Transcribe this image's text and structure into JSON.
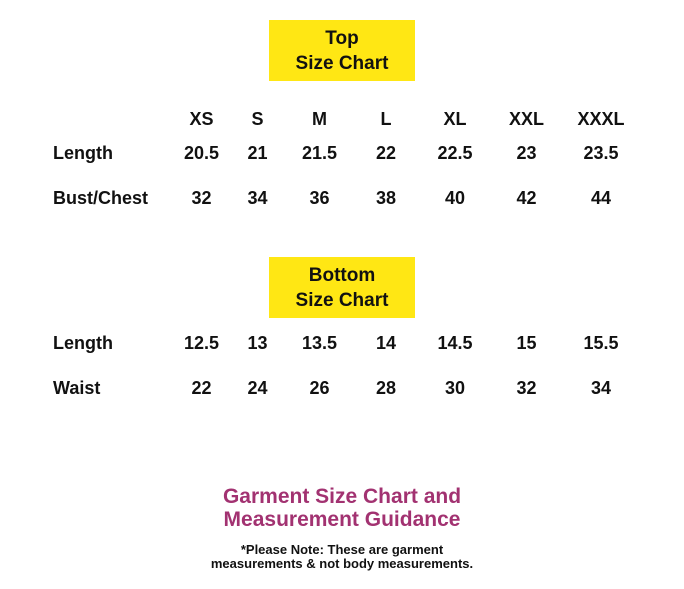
{
  "colors": {
    "background": "#ffffff",
    "title_highlight_yellow": "#ffe714",
    "heading_magenta": "#a23271",
    "text_black": "#111111"
  },
  "chart_data": [
    {
      "type": "table",
      "title": "Top Size Chart",
      "title_lines": [
        "Top",
        "Size Chart"
      ],
      "columns": [
        "XS",
        "S",
        "M",
        "L",
        "XL",
        "XXL",
        "XXXL"
      ],
      "rows": [
        {
          "label": "Length",
          "values": [
            "20.5",
            "21",
            "21.5",
            "22",
            "22.5",
            "23",
            "23.5"
          ]
        },
        {
          "label": "Bust/Chest",
          "values": [
            "32",
            "34",
            "36",
            "38",
            "40",
            "42",
            "44"
          ]
        }
      ]
    },
    {
      "type": "table",
      "title": "Bottom Size Chart",
      "title_lines": [
        "Bottom",
        "Size Chart"
      ],
      "columns": [],
      "rows": [
        {
          "label": "Length",
          "values": [
            "12.5",
            "13",
            "13.5",
            "14",
            "14.5",
            "15",
            "15.5"
          ]
        },
        {
          "label": "Waist",
          "values": [
            "22",
            "24",
            "26",
            "28",
            "30",
            "32",
            "34"
          ]
        }
      ]
    }
  ],
  "footer": {
    "heading_lines": [
      "Garment Size Chart and",
      "Measurement Guidance"
    ],
    "note_lines": [
      "*Please Note: These are garment",
      "measurements & not body measurements."
    ]
  }
}
